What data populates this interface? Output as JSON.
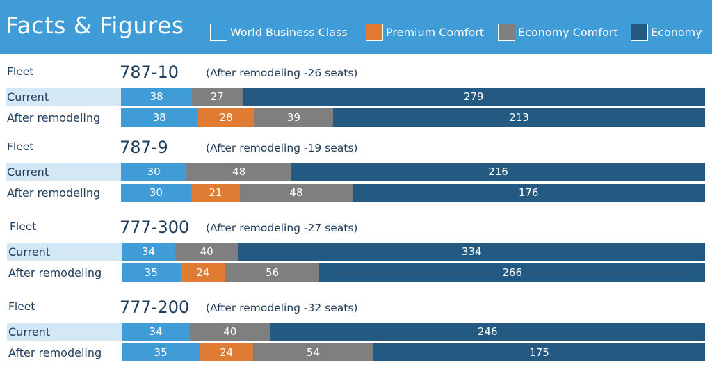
{
  "header": {
    "title": "Facts & Figures"
  },
  "legend": [
    {
      "label": "World Business Class",
      "color": "#3f9cd7",
      "icon": "square-swatch"
    },
    {
      "label": "Premium Comfort",
      "color": "#e07b34",
      "icon": "square-swatch"
    },
    {
      "label": "Economy Comfort",
      "color": "#7f7f7f",
      "icon": "square-swatch"
    },
    {
      "label": "Economy",
      "color": "#245a82",
      "icon": "square-swatch"
    }
  ],
  "colors": {
    "wbc": "#3f9cd7",
    "pc": "#e07b34",
    "ec": "#7f7f7f",
    "eco": "#245a82"
  },
  "chart_data": {
    "type": "bar",
    "orientation": "horizontal-stacked",
    "title": "Facts & Figures",
    "legend_position": "top",
    "series_names": [
      "World Business Class",
      "Premium Comfort",
      "Economy Comfort",
      "Economy"
    ],
    "groups": [
      {
        "fleet_label": "Fleet",
        "model": "787-10",
        "note": "(After remodeling -26 seats)",
        "rows": [
          {
            "label": "Current",
            "values": [
              38,
              null,
              27,
              279
            ]
          },
          {
            "label": "After remodeling",
            "values": [
              38,
              28,
              39,
              213
            ]
          }
        ]
      },
      {
        "fleet_label": "Fleet",
        "model": "787-9",
        "note": "(After remodeling -19 seats)",
        "rows": [
          {
            "label": "Current",
            "values": [
              30,
              null,
              48,
              216
            ]
          },
          {
            "label": "After remodeling",
            "values": [
              30,
              21,
              48,
              176
            ]
          }
        ]
      },
      {
        "fleet_label": "Fleet",
        "model": "777-300",
        "note": "(After remodeling -27 seats)",
        "rows": [
          {
            "label": "Current",
            "values": [
              34,
              null,
              40,
              334
            ]
          },
          {
            "label": "After remodeling",
            "values": [
              35,
              24,
              56,
              266
            ]
          }
        ]
      },
      {
        "fleet_label": "Fleet",
        "model": "777-200",
        "note": "(After remodeling -32 seats)",
        "rows": [
          {
            "label": "Current",
            "values": [
              34,
              null,
              40,
              246
            ]
          },
          {
            "label": "After remodeling",
            "values": [
              35,
              24,
              54,
              175
            ]
          }
        ]
      }
    ]
  }
}
